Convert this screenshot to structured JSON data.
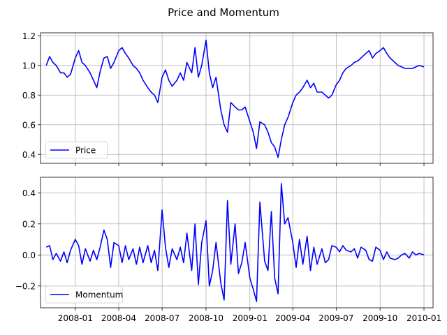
{
  "figure": {
    "title": "Price and Momentum"
  },
  "chart_data": [
    {
      "type": "line",
      "x_axis": {
        "type": "date",
        "range": [
          "2007-10-20",
          "2010-01-20"
        ],
        "ticks": [
          "2008-01",
          "2008-04",
          "2008-07",
          "2008-10",
          "2009-01",
          "2009-04",
          "2009-07",
          "2009-10",
          "2010-01"
        ],
        "tick_labels_shown": false
      },
      "y_axis": {
        "range": [
          0.34,
          1.22
        ],
        "ticks": [
          0.4,
          0.6,
          0.8,
          1.0,
          1.2
        ],
        "tick_labels": [
          "0.4",
          "0.6",
          "0.8",
          "1.0",
          "1.2"
        ]
      },
      "grid": true,
      "legend": "lower left",
      "series": [
        {
          "name": "Price",
          "color": "#0000ff",
          "points": [
            [
              "2007-11-01",
              1.0
            ],
            [
              "2007-11-08",
              1.06
            ],
            [
              "2007-11-15",
              1.02
            ],
            [
              "2007-11-22",
              1.0
            ],
            [
              "2007-12-01",
              0.95
            ],
            [
              "2007-12-08",
              0.95
            ],
            [
              "2007-12-15",
              0.92
            ],
            [
              "2007-12-22",
              0.94
            ],
            [
              "2008-01-01",
              1.05
            ],
            [
              "2008-01-08",
              1.1
            ],
            [
              "2008-01-15",
              1.02
            ],
            [
              "2008-01-22",
              1.0
            ],
            [
              "2008-02-01",
              0.95
            ],
            [
              "2008-02-08",
              0.9
            ],
            [
              "2008-02-15",
              0.85
            ],
            [
              "2008-02-22",
              0.96
            ],
            [
              "2008-03-01",
              1.05
            ],
            [
              "2008-03-08",
              1.06
            ],
            [
              "2008-03-15",
              0.98
            ],
            [
              "2008-03-22",
              1.02
            ],
            [
              "2008-04-01",
              1.1
            ],
            [
              "2008-04-08",
              1.12
            ],
            [
              "2008-04-15",
              1.08
            ],
            [
              "2008-04-22",
              1.05
            ],
            [
              "2008-05-01",
              1.0
            ],
            [
              "2008-05-08",
              0.98
            ],
            [
              "2008-05-15",
              0.95
            ],
            [
              "2008-05-22",
              0.9
            ],
            [
              "2008-06-01",
              0.85
            ],
            [
              "2008-06-08",
              0.82
            ],
            [
              "2008-06-15",
              0.8
            ],
            [
              "2008-06-22",
              0.75
            ],
            [
              "2008-07-01",
              0.92
            ],
            [
              "2008-07-08",
              0.97
            ],
            [
              "2008-07-15",
              0.9
            ],
            [
              "2008-07-22",
              0.86
            ],
            [
              "2008-08-01",
              0.9
            ],
            [
              "2008-08-08",
              0.95
            ],
            [
              "2008-08-15",
              0.9
            ],
            [
              "2008-08-22",
              1.02
            ],
            [
              "2008-09-01",
              0.95
            ],
            [
              "2008-09-08",
              1.12
            ],
            [
              "2008-09-15",
              0.92
            ],
            [
              "2008-09-22",
              1.0
            ],
            [
              "2008-10-01",
              1.17
            ],
            [
              "2008-10-08",
              0.95
            ],
            [
              "2008-10-15",
              0.85
            ],
            [
              "2008-10-22",
              0.92
            ],
            [
              "2008-11-01",
              0.7
            ],
            [
              "2008-11-08",
              0.6
            ],
            [
              "2008-11-15",
              0.55
            ],
            [
              "2008-11-22",
              0.75
            ],
            [
              "2008-12-01",
              0.72
            ],
            [
              "2008-12-08",
              0.7
            ],
            [
              "2008-12-15",
              0.7
            ],
            [
              "2008-12-22",
              0.72
            ],
            [
              "2009-01-01",
              0.62
            ],
            [
              "2009-01-08",
              0.55
            ],
            [
              "2009-01-15",
              0.44
            ],
            [
              "2009-01-22",
              0.62
            ],
            [
              "2009-02-01",
              0.6
            ],
            [
              "2009-02-08",
              0.55
            ],
            [
              "2009-02-15",
              0.48
            ],
            [
              "2009-02-22",
              0.45
            ],
            [
              "2009-03-01",
              0.38
            ],
            [
              "2009-03-08",
              0.5
            ],
            [
              "2009-03-15",
              0.6
            ],
            [
              "2009-03-22",
              0.65
            ],
            [
              "2009-04-01",
              0.75
            ],
            [
              "2009-04-08",
              0.8
            ],
            [
              "2009-04-15",
              0.82
            ],
            [
              "2009-04-22",
              0.85
            ],
            [
              "2009-05-01",
              0.9
            ],
            [
              "2009-05-08",
              0.85
            ],
            [
              "2009-05-15",
              0.88
            ],
            [
              "2009-05-22",
              0.82
            ],
            [
              "2009-06-01",
              0.82
            ],
            [
              "2009-06-08",
              0.8
            ],
            [
              "2009-06-15",
              0.78
            ],
            [
              "2009-06-22",
              0.8
            ],
            [
              "2009-07-01",
              0.87
            ],
            [
              "2009-07-08",
              0.9
            ],
            [
              "2009-07-15",
              0.95
            ],
            [
              "2009-07-22",
              0.98
            ],
            [
              "2009-08-01",
              1.0
            ],
            [
              "2009-08-08",
              1.02
            ],
            [
              "2009-08-15",
              1.03
            ],
            [
              "2009-08-22",
              1.05
            ],
            [
              "2009-09-01",
              1.08
            ],
            [
              "2009-09-08",
              1.1
            ],
            [
              "2009-09-15",
              1.05
            ],
            [
              "2009-09-22",
              1.08
            ],
            [
              "2009-10-01",
              1.1
            ],
            [
              "2009-10-08",
              1.12
            ],
            [
              "2009-10-15",
              1.08
            ],
            [
              "2009-10-22",
              1.05
            ],
            [
              "2009-11-01",
              1.02
            ],
            [
              "2009-11-08",
              1.0
            ],
            [
              "2009-11-15",
              0.99
            ],
            [
              "2009-11-22",
              0.98
            ],
            [
              "2009-12-01",
              0.98
            ],
            [
              "2009-12-08",
              0.98
            ],
            [
              "2009-12-15",
              0.99
            ],
            [
              "2009-12-22",
              1.0
            ],
            [
              "2010-01-01",
              0.99
            ]
          ]
        }
      ]
    },
    {
      "type": "line",
      "x_axis": {
        "type": "date",
        "range": [
          "2007-10-20",
          "2010-01-20"
        ],
        "ticks": [
          "2008-01",
          "2008-04",
          "2008-07",
          "2008-10",
          "2009-01",
          "2009-04",
          "2009-07",
          "2009-10",
          "2010-01"
        ],
        "tick_labels": [
          "2008-01",
          "2008-04",
          "2008-07",
          "2008-10",
          "2009-01",
          "2009-04",
          "2009-07",
          "2009-10",
          "2010-01"
        ]
      },
      "y_axis": {
        "range": [
          -0.34,
          0.5
        ],
        "ticks": [
          -0.2,
          0.0,
          0.2,
          0.4
        ],
        "tick_labels": [
          "−0.2",
          "0.0",
          "0.2",
          "0.4"
        ]
      },
      "grid": true,
      "legend": "lower left",
      "series": [
        {
          "name": "Momentum",
          "color": "#0000ff",
          "points": [
            [
              "2007-11-01",
              0.05
            ],
            [
              "2007-11-08",
              0.06
            ],
            [
              "2007-11-15",
              -0.03
            ],
            [
              "2007-11-22",
              0.01
            ],
            [
              "2007-12-01",
              -0.04
            ],
            [
              "2007-12-08",
              0.02
            ],
            [
              "2007-12-15",
              -0.05
            ],
            [
              "2007-12-22",
              0.03
            ],
            [
              "2008-01-01",
              0.1
            ],
            [
              "2008-01-08",
              0.06
            ],
            [
              "2008-01-15",
              -0.06
            ],
            [
              "2008-01-22",
              0.04
            ],
            [
              "2008-02-01",
              -0.04
            ],
            [
              "2008-02-08",
              0.03
            ],
            [
              "2008-02-15",
              -0.03
            ],
            [
              "2008-02-22",
              0.05
            ],
            [
              "2008-03-01",
              0.16
            ],
            [
              "2008-03-08",
              0.1
            ],
            [
              "2008-03-15",
              -0.08
            ],
            [
              "2008-03-22",
              0.08
            ],
            [
              "2008-04-01",
              0.06
            ],
            [
              "2008-04-08",
              -0.05
            ],
            [
              "2008-04-15",
              0.06
            ],
            [
              "2008-04-22",
              -0.03
            ],
            [
              "2008-05-01",
              0.04
            ],
            [
              "2008-05-08",
              -0.06
            ],
            [
              "2008-05-15",
              0.05
            ],
            [
              "2008-05-22",
              -0.05
            ],
            [
              "2008-06-01",
              0.06
            ],
            [
              "2008-06-08",
              -0.05
            ],
            [
              "2008-06-15",
              0.03
            ],
            [
              "2008-06-22",
              -0.1
            ],
            [
              "2008-07-01",
              0.29
            ],
            [
              "2008-07-08",
              0.05
            ],
            [
              "2008-07-15",
              -0.08
            ],
            [
              "2008-07-22",
              0.04
            ],
            [
              "2008-08-01",
              -0.03
            ],
            [
              "2008-08-08",
              0.05
            ],
            [
              "2008-08-15",
              -0.05
            ],
            [
              "2008-08-22",
              0.14
            ],
            [
              "2008-09-01",
              -0.1
            ],
            [
              "2008-09-08",
              0.2
            ],
            [
              "2008-09-15",
              -0.19
            ],
            [
              "2008-09-22",
              0.08
            ],
            [
              "2008-10-01",
              0.22
            ],
            [
              "2008-10-08",
              -0.2
            ],
            [
              "2008-10-15",
              -0.1
            ],
            [
              "2008-10-22",
              0.08
            ],
            [
              "2008-11-01",
              -0.18
            ],
            [
              "2008-11-08",
              -0.29
            ],
            [
              "2008-11-15",
              0.35
            ],
            [
              "2008-11-22",
              -0.06
            ],
            [
              "2008-12-01",
              0.2
            ],
            [
              "2008-12-08",
              -0.12
            ],
            [
              "2008-12-15",
              -0.05
            ],
            [
              "2008-12-22",
              0.08
            ],
            [
              "2009-01-01",
              -0.15
            ],
            [
              "2009-01-08",
              -0.22
            ],
            [
              "2009-01-15",
              -0.3
            ],
            [
              "2009-01-22",
              0.34
            ],
            [
              "2009-02-01",
              -0.04
            ],
            [
              "2009-02-08",
              -0.1
            ],
            [
              "2009-02-15",
              0.28
            ],
            [
              "2009-02-22",
              -0.15
            ],
            [
              "2009-03-01",
              -0.25
            ],
            [
              "2009-03-08",
              0.46
            ],
            [
              "2009-03-15",
              0.2
            ],
            [
              "2009-03-22",
              0.24
            ],
            [
              "2009-04-01",
              0.08
            ],
            [
              "2009-04-08",
              -0.08
            ],
            [
              "2009-04-15",
              0.1
            ],
            [
              "2009-04-22",
              -0.06
            ],
            [
              "2009-05-01",
              0.12
            ],
            [
              "2009-05-08",
              -0.1
            ],
            [
              "2009-05-15",
              0.05
            ],
            [
              "2009-05-22",
              -0.06
            ],
            [
              "2009-06-01",
              0.04
            ],
            [
              "2009-06-08",
              -0.05
            ],
            [
              "2009-06-15",
              -0.03
            ],
            [
              "2009-06-22",
              0.06
            ],
            [
              "2009-07-01",
              0.05
            ],
            [
              "2009-07-08",
              0.02
            ],
            [
              "2009-07-15",
              0.06
            ],
            [
              "2009-07-22",
              0.03
            ],
            [
              "2009-08-01",
              0.02
            ],
            [
              "2009-08-08",
              0.04
            ],
            [
              "2009-08-15",
              -0.02
            ],
            [
              "2009-08-22",
              0.05
            ],
            [
              "2009-09-01",
              0.03
            ],
            [
              "2009-09-08",
              -0.03
            ],
            [
              "2009-09-15",
              -0.04
            ],
            [
              "2009-09-22",
              0.05
            ],
            [
              "2009-10-01",
              0.03
            ],
            [
              "2009-10-08",
              -0.03
            ],
            [
              "2009-10-15",
              0.02
            ],
            [
              "2009-10-22",
              -0.02
            ],
            [
              "2009-11-01",
              -0.03
            ],
            [
              "2009-11-08",
              -0.02
            ],
            [
              "2009-11-15",
              0.0
            ],
            [
              "2009-11-22",
              0.01
            ],
            [
              "2009-12-01",
              -0.02
            ],
            [
              "2009-12-08",
              0.02
            ],
            [
              "2009-12-15",
              0.0
            ],
            [
              "2009-12-22",
              0.01
            ],
            [
              "2010-01-01",
              0.0
            ]
          ]
        }
      ]
    }
  ]
}
